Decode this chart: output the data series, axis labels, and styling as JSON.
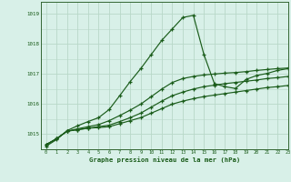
{
  "title": "Graphe pression niveau de la mer (hPa)",
  "bg_color": "#d8f0e8",
  "grid_color": "#b8d8c8",
  "line_color": "#1a5c1a",
  "xlim": [
    -0.5,
    23
  ],
  "ylim": [
    1014.5,
    1019.4
  ],
  "yticks": [
    1015,
    1016,
    1017,
    1018,
    1019
  ],
  "xticks": [
    0,
    1,
    2,
    3,
    4,
    5,
    6,
    7,
    8,
    9,
    10,
    11,
    12,
    13,
    14,
    15,
    16,
    17,
    18,
    19,
    20,
    21,
    22,
    23
  ],
  "series": [
    [
      1014.65,
      1014.85,
      1015.1,
      1015.15,
      1015.2,
      1015.22,
      1015.25,
      1015.35,
      1015.45,
      1015.55,
      1015.7,
      1015.85,
      1016.0,
      1016.1,
      1016.18,
      1016.25,
      1016.3,
      1016.35,
      1016.4,
      1016.45,
      1016.5,
      1016.55,
      1016.58,
      1016.62
    ],
    [
      1014.65,
      1014.85,
      1015.1,
      1015.15,
      1015.2,
      1015.25,
      1015.3,
      1015.42,
      1015.55,
      1015.7,
      1015.9,
      1016.1,
      1016.28,
      1016.4,
      1016.5,
      1016.58,
      1016.63,
      1016.68,
      1016.72,
      1016.76,
      1016.8,
      1016.85,
      1016.88,
      1016.92
    ],
    [
      1014.65,
      1014.85,
      1015.1,
      1015.18,
      1015.25,
      1015.32,
      1015.45,
      1015.62,
      1015.8,
      1016.0,
      1016.25,
      1016.5,
      1016.72,
      1016.85,
      1016.92,
      1016.97,
      1017.0,
      1017.03,
      1017.05,
      1017.08,
      1017.12,
      1017.15,
      1017.18,
      1017.2
    ],
    [
      1014.6,
      1014.82,
      1015.12,
      1015.28,
      1015.42,
      1015.55,
      1015.82,
      1016.28,
      1016.75,
      1017.18,
      1017.65,
      1018.12,
      1018.5,
      1018.88,
      1018.95,
      1017.65,
      1016.68,
      1016.58,
      1016.52,
      1016.82,
      1016.95,
      1017.02,
      1017.12,
      1017.18
    ]
  ]
}
